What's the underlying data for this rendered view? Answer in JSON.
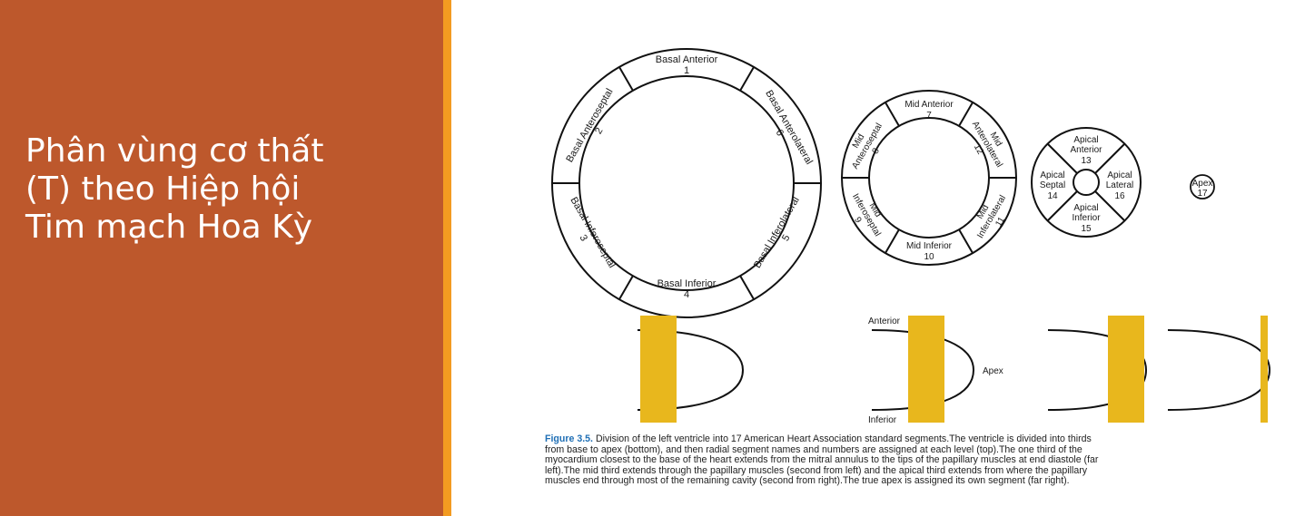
{
  "title_lines": [
    "Phân vùng cơ thất",
    "(T) theo Hiệp hội",
    "Tim mạch Hoa Kỳ"
  ],
  "colors": {
    "left_panel": "#bd582c",
    "accent_bar": "#f39b21",
    "papillary": "#e8b71d",
    "caption_label": "#1f6fb5"
  },
  "segments": {
    "basal_anterior": [
      "Basal Anterior",
      "1"
    ],
    "basal_anteroseptal": [
      "Basal Anteroseptal",
      "2"
    ],
    "basal_inferoseptal": [
      "Basal Inferoseptal",
      "3"
    ],
    "basal_inferior": [
      "Basal Inferior",
      "4"
    ],
    "basal_inferolateral": [
      "Basal Inferolateral",
      "5"
    ],
    "basal_anterolateral": [
      "Basal Anterolateral",
      "6"
    ],
    "mid_anterior": [
      "Mid Anterior",
      "7"
    ],
    "mid_anteroseptal": [
      "Mid",
      "Anteroseptal",
      "8"
    ],
    "mid_inferoseptal": [
      "Mid",
      "Inferoseptal",
      "9"
    ],
    "mid_inferior": [
      "Mid Inferior",
      "10"
    ],
    "mid_inferolateral": [
      "Mid",
      "Inferolateral",
      "11"
    ],
    "mid_anterolateral": [
      "Mid",
      "Anterolateral",
      "12"
    ],
    "apical_anterior": [
      "Apical",
      "Anterior",
      "13"
    ],
    "apical_septal": [
      "Apical",
      "Septal",
      "14"
    ],
    "apical_inferior": [
      "Apical",
      "Inferior",
      "15"
    ],
    "apical_lateral": [
      "Apical",
      "Lateral",
      "16"
    ],
    "apex": [
      "Apex",
      "17"
    ]
  },
  "orientation_labels": {
    "anterior": "Anterior",
    "apex": "Apex",
    "inferior": "Inferior"
  },
  "caption": {
    "label": "Figure 3.5.",
    "lines": [
      "Division of the left ventricle into 17 American Heart Association standard segments.The ventricle is divided into thirds",
      "from base to apex (bottom), and then radial segment names and numbers are assigned at each level (top).The one third of the",
      "myocardium closest to the base of the heart extends from the mitral annulus to the tips of the papillary muscles at end diastole (far",
      "left).The mid third extends through the papillary muscles (second from left) and the apical third extends from where the papillary",
      "muscles end through most of the remaining cavity (second from right).The true apex is assigned its own segment (far right)."
    ]
  }
}
